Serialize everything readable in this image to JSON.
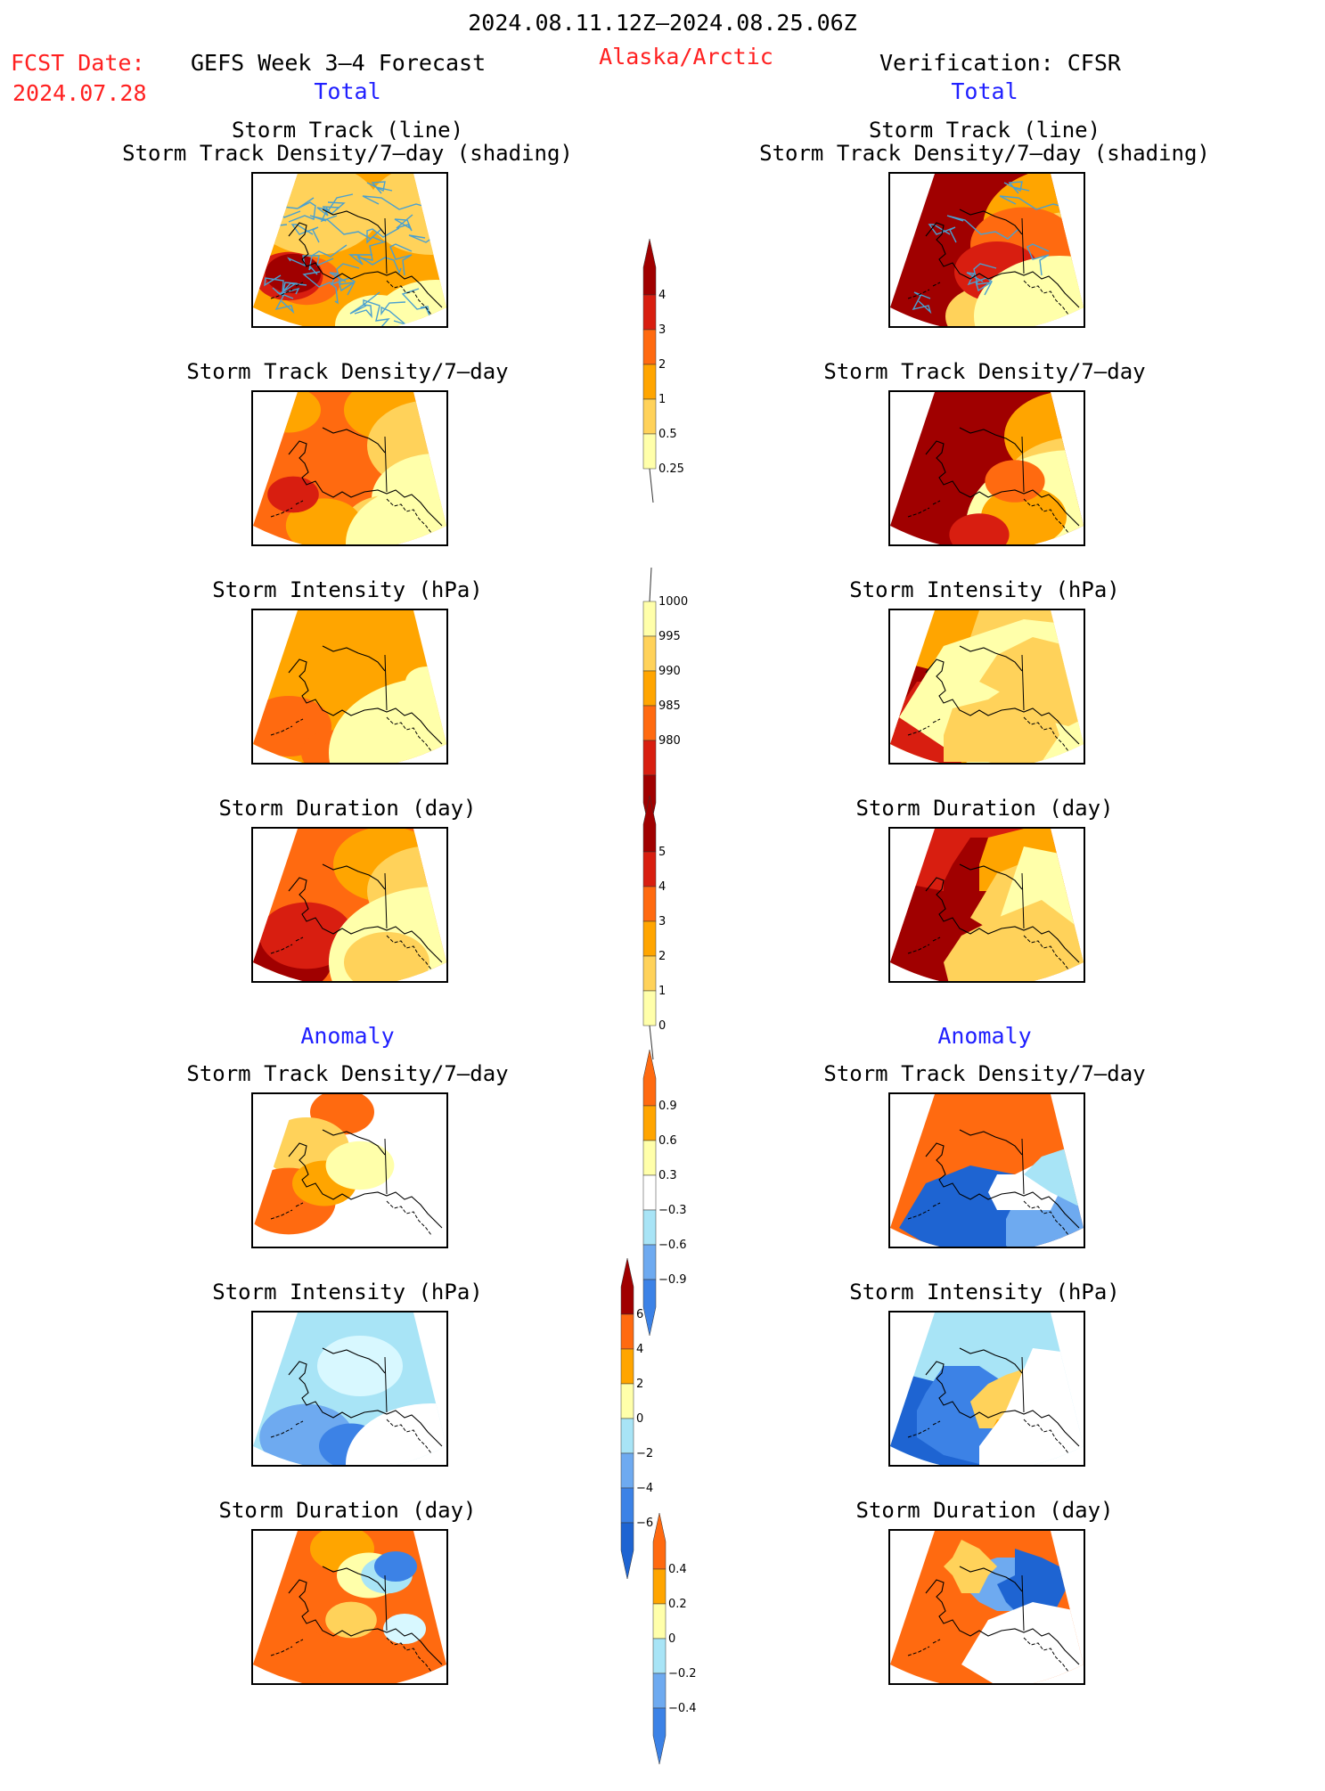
{
  "header": {
    "period": "2024.08.11.12Z–2024.08.25.06Z",
    "fcst_label": "FCST Date:",
    "fcst_date": "2024.07.28",
    "model": "GEFS Week 3–4 Forecast",
    "region": "Alaska/Arctic",
    "verification": "Verification: CFSR",
    "total_left": "Total",
    "total_right": "Total",
    "anomaly_left": "Anomaly",
    "anomaly_right": "Anomaly"
  },
  "panel_titles": {
    "track_line": "Storm Track (line)",
    "track_density_shading": "Storm Track Density/7–day (shading)",
    "track_density": "Storm Track Density/7–day",
    "intensity": "Storm Intensity (hPa)",
    "duration": "Storm Duration (day)"
  },
  "colorbars": {
    "density": [
      "4",
      "3",
      "2",
      "1",
      "0.5",
      "0.25"
    ],
    "intensity": [
      "1000",
      "995",
      "990",
      "985",
      "980"
    ],
    "duration": [
      "5",
      "4",
      "3",
      "2",
      "1",
      "0"
    ],
    "density_anom": [
      "0.9",
      "0.6",
      "0.3",
      "−0.3",
      "−0.6",
      "−0.9"
    ],
    "intensity_anom": [
      "6",
      "4",
      "2",
      "0",
      "−2",
      "−4",
      "−6"
    ],
    "duration_anom": [
      "0.4",
      "0.2",
      "0",
      "−0.2",
      "−0.4"
    ]
  },
  "colors": {
    "warm": [
      "#ffffaa",
      "#ffd25a",
      "#ffa500",
      "#ff6a10",
      "#d81e10",
      "#a00000"
    ],
    "cool": [
      "#d8f8ff",
      "#a8e4f6",
      "#6eaaf0",
      "#3c82e6",
      "#1e64d2"
    ],
    "track_lines": "#4aa0d0"
  },
  "map_icons": [
    "alaska-outline-map"
  ]
}
